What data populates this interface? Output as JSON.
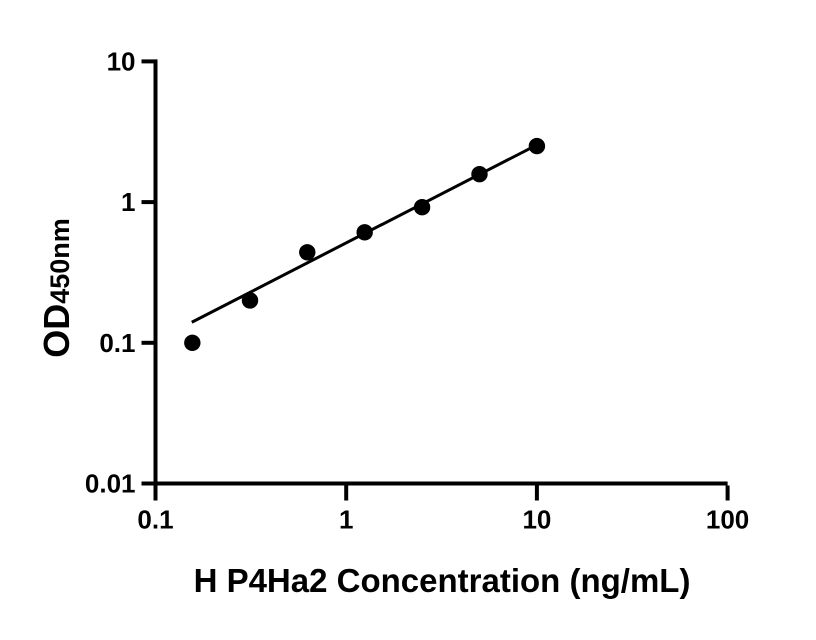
{
  "chart_data": {
    "type": "scatter",
    "title": "",
    "xlabel": "H P4Ha2 Concentration (ng/mL)",
    "ylabel_main": "OD",
    "ylabel_sub": "450nm",
    "x_scale": "log",
    "y_scale": "log",
    "xlim": [
      0.1,
      100
    ],
    "ylim": [
      0.01,
      10
    ],
    "x_ticks": [
      0.1,
      1,
      10,
      100
    ],
    "x_tick_labels": [
      "0.1",
      "1",
      "10",
      "100"
    ],
    "y_ticks": [
      0.01,
      0.1,
      1,
      10
    ],
    "y_tick_labels": [
      "0.01",
      "0.1",
      "1",
      "10"
    ],
    "grid": false,
    "legend": false,
    "series": [
      {
        "name": "standard-curve-points",
        "marker": "filled-circle",
        "color": "#000000",
        "x": [
          0.156,
          0.313,
          0.625,
          1.25,
          2.5,
          5,
          10
        ],
        "y": [
          0.1,
          0.2,
          0.44,
          0.61,
          0.92,
          1.58,
          2.5
        ]
      }
    ],
    "fit_line": {
      "name": "power-fit-line",
      "color": "#000000",
      "x": [
        0.155,
        10
      ],
      "y": [
        0.14,
        2.55
      ]
    },
    "colors": {
      "axis": "#000000",
      "marker": "#000000",
      "background": "#ffffff"
    }
  }
}
